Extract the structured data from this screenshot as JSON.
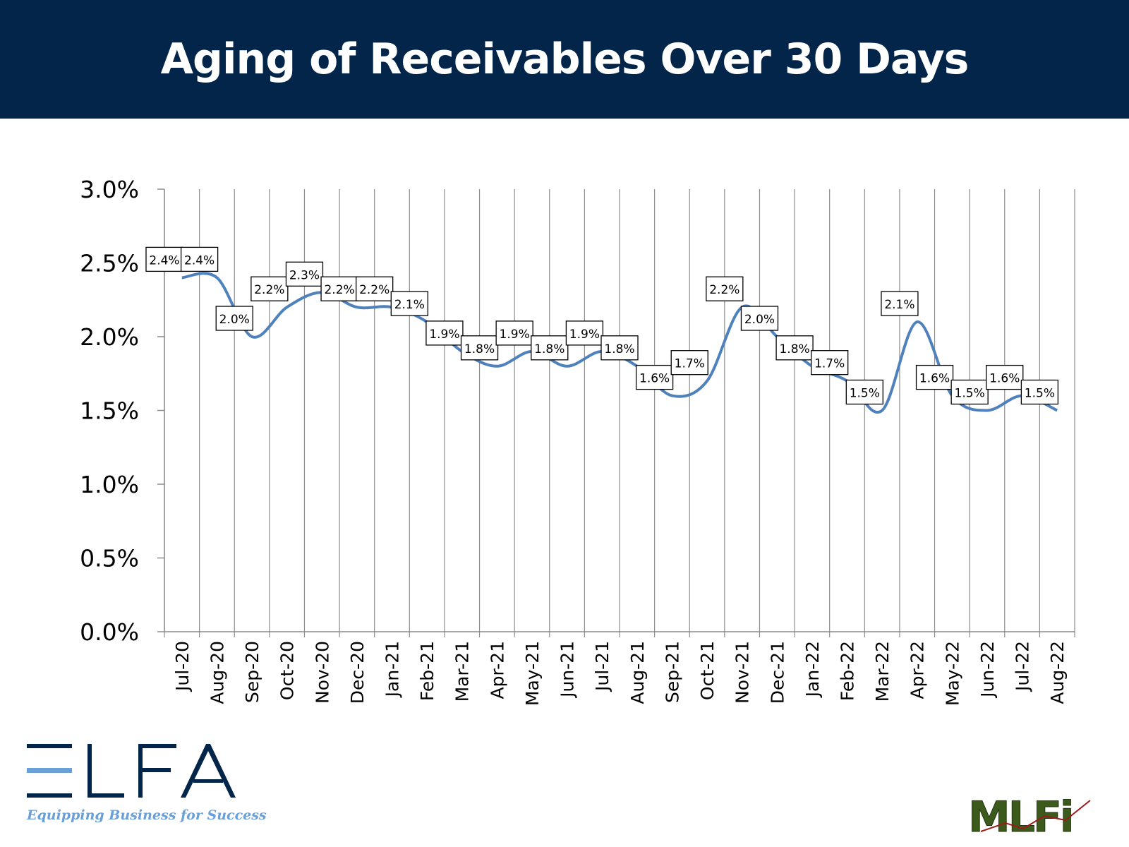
{
  "header": {
    "title": "Aging of Receivables Over 30 Days"
  },
  "colors": {
    "header_bg": "#022549",
    "line": "#4f81bd",
    "grid": "#8c8c8c"
  },
  "chart_data": {
    "type": "line",
    "title": "Aging of Receivables Over 30 Days",
    "xlabel": "",
    "ylabel": "",
    "grid": "vertical",
    "smooth": true,
    "ylim": [
      0,
      3.0
    ],
    "yticks": [
      "0.0%",
      "0.5%",
      "1.0%",
      "1.5%",
      "2.0%",
      "2.5%",
      "3.0%"
    ],
    "categories": [
      "Jul-20",
      "Aug-20",
      "Sep-20",
      "Oct-20",
      "Nov-20",
      "Dec-20",
      "Jan-21",
      "Feb-21",
      "Mar-21",
      "Apr-21",
      "May-21",
      "Jun-21",
      "Jul-21",
      "Aug-21",
      "Sep-21",
      "Oct-21",
      "Nov-21",
      "Dec-21",
      "Jan-22",
      "Feb-22",
      "Mar-22",
      "Apr-22",
      "May-22",
      "Jun-22",
      "Jul-22",
      "Aug-22"
    ],
    "series": [
      {
        "values": [
          2.4,
          2.4,
          2.0,
          2.2,
          2.3,
          2.2,
          2.2,
          2.1,
          1.9,
          1.8,
          1.9,
          1.8,
          1.9,
          1.8,
          1.6,
          1.7,
          2.2,
          2.0,
          1.8,
          1.7,
          1.5,
          2.1,
          1.6,
          1.5,
          1.6,
          1.5
        ],
        "data_labels": [
          "2.4%",
          "2.4%",
          "2.0%",
          "2.2%",
          "2.3%",
          "2.2%",
          "2.2%",
          "2.1%",
          "1.9%",
          "1.8%",
          "1.9%",
          "1.8%",
          "1.9%",
          "1.8%",
          "1.6%",
          "1.7%",
          "2.2%",
          "2.0%",
          "1.8%",
          "1.7%",
          "1.5%",
          "2.1%",
          "1.6%",
          "1.5%",
          "1.6%",
          "1.5%"
        ]
      }
    ]
  },
  "logos": {
    "elfa": {
      "text": "ELFA",
      "tagline": "Equipping Business for Success"
    },
    "mlfi": {
      "text": "MLFI"
    }
  }
}
